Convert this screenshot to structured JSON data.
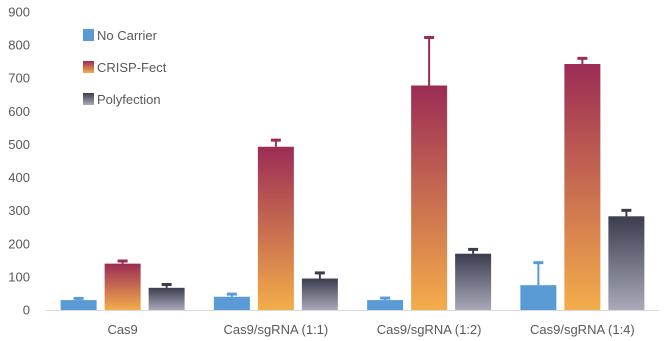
{
  "chart_data": {
    "type": "bar",
    "title": "",
    "xlabel": "",
    "ylabel": "",
    "ylim": [
      0,
      900
    ],
    "yticks": [
      0,
      100,
      200,
      300,
      400,
      500,
      600,
      700,
      800,
      900
    ],
    "grid": false,
    "legend_position": "top-left",
    "categories": [
      "Cas9",
      "Cas9/sgRNA (1:1)",
      "Cas9/sgRNA (1:2)",
      "Cas9/sgRNA (1:4)"
    ],
    "series": [
      {
        "name": "No Carrier",
        "values": [
          30,
          40,
          30,
          75
        ],
        "errors": [
          5,
          8,
          6,
          68
        ],
        "colors": {
          "solid": "#5b9bd5"
        }
      },
      {
        "name": "CRISP-Fect",
        "values": [
          140,
          493,
          678,
          743
        ],
        "errors": [
          8,
          20,
          145,
          17
        ],
        "colors": {
          "top": "#9b2c55",
          "bottom": "#f4ad4b"
        }
      },
      {
        "name": "Polyfection",
        "values": [
          67,
          95,
          170,
          283
        ],
        "errors": [
          10,
          17,
          13,
          18
        ],
        "colors": {
          "top": "#3b3d4f",
          "bottom": "#a9a9b8"
        }
      }
    ]
  }
}
